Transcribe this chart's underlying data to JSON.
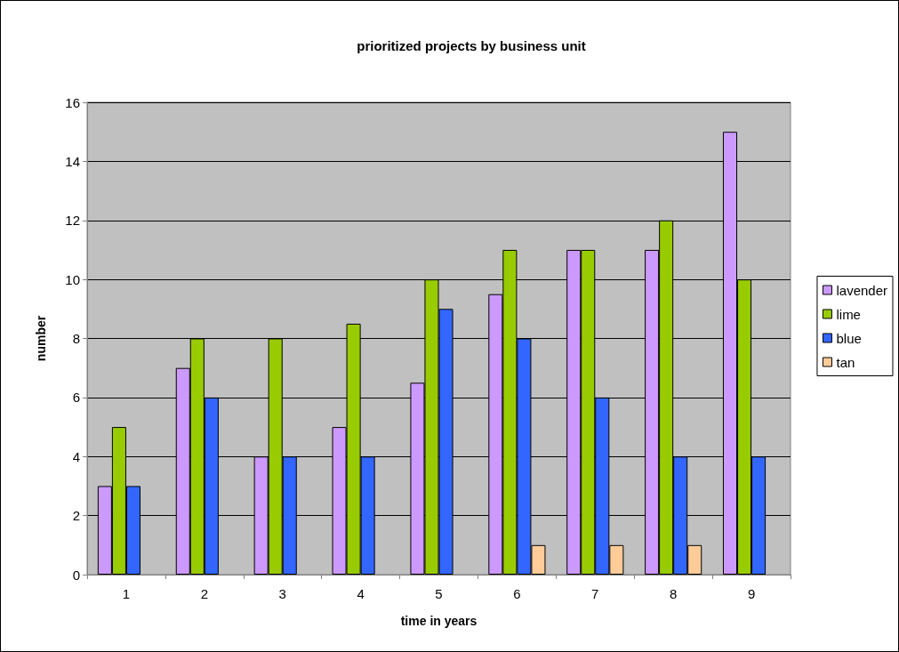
{
  "chart_data": {
    "type": "bar",
    "title": "prioritized projects by business unit",
    "xlabel": "time in years",
    "ylabel": "number",
    "categories": [
      "1",
      "2",
      "3",
      "4",
      "5",
      "6",
      "7",
      "8",
      "9"
    ],
    "series": [
      {
        "name": "lavender",
        "color": "#cc99ff",
        "values": [
          3,
          7,
          4,
          5,
          6.5,
          9.5,
          11,
          11,
          15
        ]
      },
      {
        "name": "lime",
        "color": "#99cc00",
        "values": [
          5,
          8,
          8,
          8.5,
          10,
          11,
          11,
          12,
          10
        ]
      },
      {
        "name": "blue",
        "color": "#3366ff",
        "values": [
          3,
          6,
          4,
          4,
          9,
          8,
          6,
          4,
          4
        ]
      },
      {
        "name": "tan",
        "color": "#ffcc99",
        "values": [
          null,
          null,
          null,
          null,
          null,
          1,
          1,
          1,
          null
        ]
      }
    ],
    "ylim": [
      0,
      16
    ],
    "yticks": [
      0,
      2,
      4,
      6,
      8,
      10,
      12,
      14,
      16
    ],
    "grid": "y",
    "legend": "right"
  }
}
